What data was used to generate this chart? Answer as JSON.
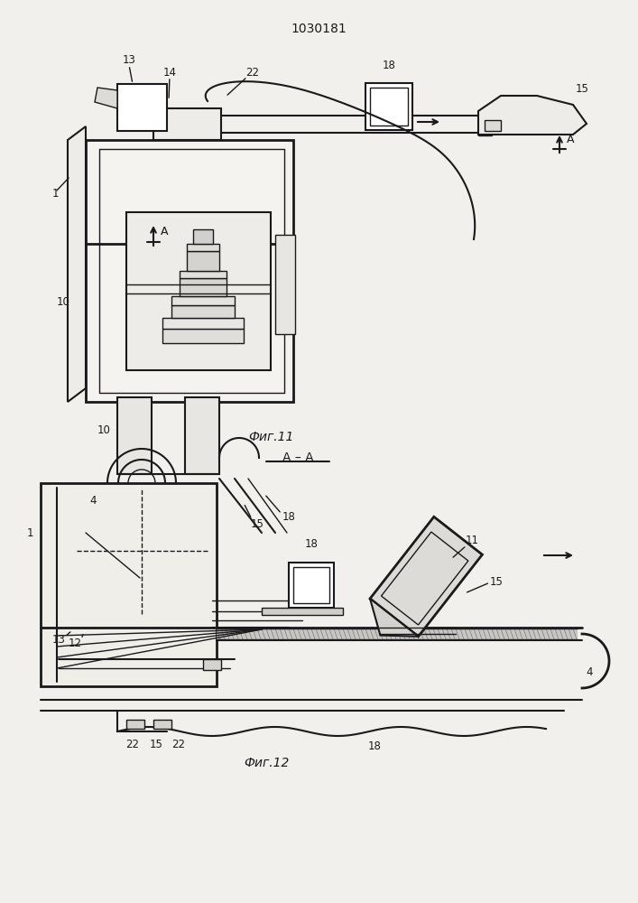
{
  "patent_number": "1030181",
  "fig1_caption": "Фиг.11",
  "fig2_caption": "Фиг.12",
  "section_label": "А – А",
  "bg_color": "#f2f0ed",
  "line_color": "#1a1a1a",
  "fig_width": 7.07,
  "fig_height": 10.0
}
